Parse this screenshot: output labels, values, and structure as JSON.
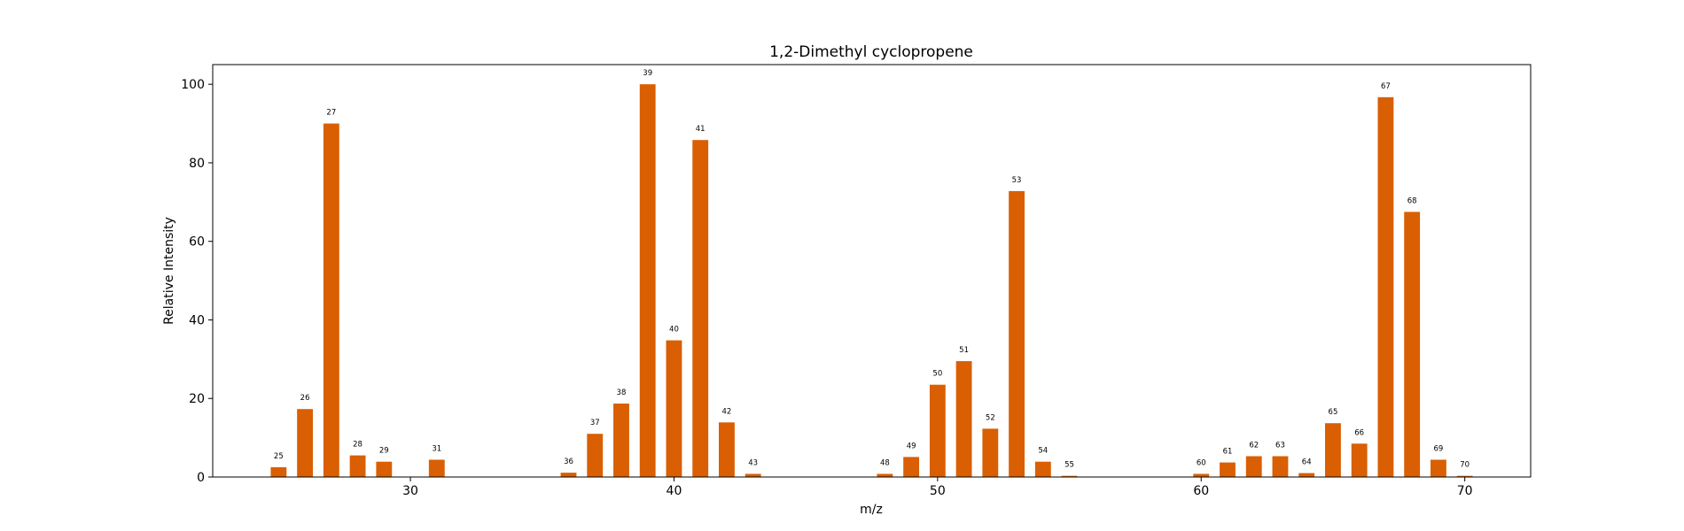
{
  "chart_data": {
    "type": "bar",
    "title": "1,2-Dimethyl cyclopropene",
    "xlabel": "m/z",
    "ylabel": "Relative Intensity",
    "xlim": [
      22.5,
      72.5
    ],
    "ylim": [
      0,
      105
    ],
    "xticks": [
      30,
      40,
      50,
      60,
      70
    ],
    "yticks": [
      0,
      20,
      40,
      60,
      80,
      100
    ],
    "bar_color": "#d95f02",
    "grid": false,
    "x": [
      25,
      26,
      27,
      28,
      29,
      31,
      36,
      37,
      38,
      39,
      40,
      41,
      42,
      43,
      48,
      49,
      50,
      51,
      52,
      53,
      54,
      55,
      60,
      61,
      62,
      63,
      64,
      65,
      66,
      67,
      68,
      69,
      70
    ],
    "values": [
      2.5,
      17.3,
      90.0,
      5.5,
      3.9,
      4.4,
      1.1,
      11.0,
      18.7,
      100.0,
      34.8,
      85.8,
      13.9,
      0.8,
      0.8,
      5.1,
      23.5,
      29.5,
      12.3,
      72.8,
      3.9,
      0.3,
      0.8,
      3.7,
      5.3,
      5.3,
      1.0,
      13.7,
      8.5,
      96.7,
      67.5,
      4.4,
      0.3
    ],
    "bar_labels": [
      "25",
      "26",
      "27",
      "28",
      "29",
      "31",
      "36",
      "37",
      "38",
      "39",
      "40",
      "41",
      "42",
      "43",
      "48",
      "49",
      "50",
      "51",
      "52",
      "53",
      "54",
      "55",
      "60",
      "61",
      "62",
      "63",
      "64",
      "65",
      "66",
      "67",
      "68",
      "69",
      "70"
    ]
  }
}
